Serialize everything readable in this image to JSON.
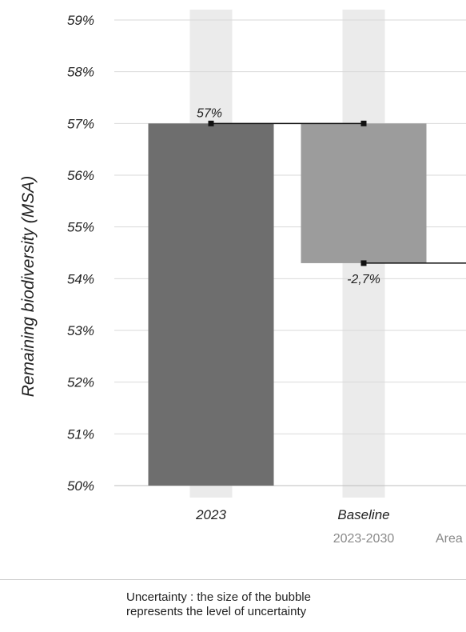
{
  "chart_data": {
    "type": "bar",
    "ylabel": "Remaining biodiversity (MSA)",
    "ylim": [
      50,
      59
    ],
    "yticks": [
      "50%",
      "51%",
      "52%",
      "53%",
      "54%",
      "55%",
      "56%",
      "57%",
      "58%",
      "59%"
    ],
    "grid": true,
    "categories": [
      {
        "label": "2023",
        "sublabel": ""
      },
      {
        "label": "Baseline",
        "sublabel": "2023-2030"
      },
      {
        "label": "",
        "sublabel": "Area"
      }
    ],
    "bars": [
      {
        "category": "2023",
        "from": 50,
        "to": 57,
        "color": "#6e6e6e",
        "label": "57%"
      },
      {
        "category": "Baseline",
        "from": 54.3,
        "to": 57,
        "color": "#9c9c9c",
        "label": "-2,7%"
      }
    ],
    "connectors": [
      {
        "level": 57,
        "from_category": "2023",
        "to_category": "Baseline"
      },
      {
        "level": 54.3,
        "from_category": "Baseline",
        "to_category": "Area"
      }
    ],
    "band_color": "#ebebeb",
    "connector_color": "#111111"
  },
  "legend": {
    "line1": "Uncertainty : the size of the bubble",
    "line2": "represents the level of uncertainty"
  }
}
